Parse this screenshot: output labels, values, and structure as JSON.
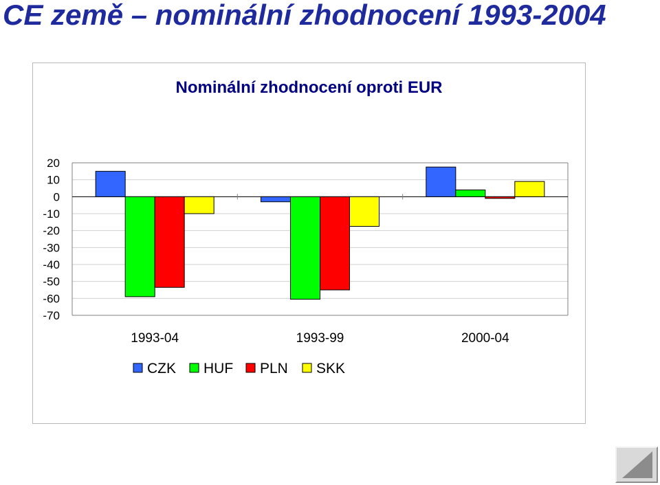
{
  "slide": {
    "title": "CE země – nominální zhodnocení 1993-2004"
  },
  "nav": {
    "back_icon": "triangle-left-icon"
  },
  "chart_data": {
    "type": "bar",
    "title": "Nominální zhodnocení oproti EUR",
    "xlabel": "",
    "ylabel": "",
    "categories": [
      "1993-04",
      "1993-99",
      "2000-04"
    ],
    "ylim": [
      -70,
      20
    ],
    "yticks": [
      20,
      10,
      0,
      -10,
      -20,
      -30,
      -40,
      -50,
      -60,
      -70
    ],
    "grid": true,
    "legend_position": "bottom-left",
    "series": [
      {
        "name": "CZK",
        "color": "#3366ff",
        "values": [
          15,
          -3,
          17.5
        ]
      },
      {
        "name": "HUF",
        "color": "#00ff00",
        "values": [
          -59,
          -60.5,
          4
        ]
      },
      {
        "name": "PLN",
        "color": "#ff0000",
        "values": [
          -53.5,
          -55,
          -1
        ]
      },
      {
        "name": "SKK",
        "color": "#ffff00",
        "values": [
          -10,
          -17.5,
          9
        ]
      }
    ]
  }
}
